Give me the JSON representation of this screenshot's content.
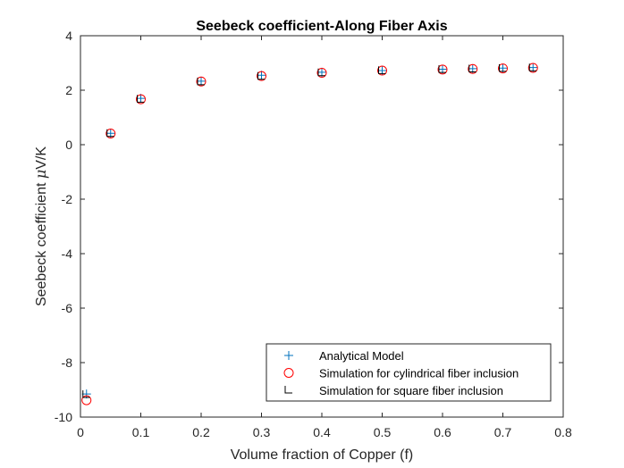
{
  "chart_data": {
    "type": "scatter",
    "title": "Seebeck coefficient-Along Fiber Axis",
    "xlabel": "Volume fraction of Copper (f)",
    "ylabel_prefix": "Seebeck coefficient ",
    "ylabel_mu": "μ",
    "ylabel_suffix": "V/K",
    "xlim": [
      0,
      0.8
    ],
    "ylim": [
      -10,
      4
    ],
    "xticks": [
      0,
      0.1,
      0.2,
      0.3,
      0.4,
      0.5,
      0.6,
      0.7,
      0.8
    ],
    "xtick_labels": [
      "0",
      "0.1",
      "0.2",
      "0.3",
      "0.4",
      "0.5",
      "0.6",
      "0.7",
      "0.8"
    ],
    "yticks": [
      -10,
      -8,
      -6,
      -4,
      -2,
      0,
      2,
      4
    ],
    "ytick_labels": [
      "-10",
      "-8",
      "-6",
      "-4",
      "-2",
      "0",
      "2",
      "4"
    ],
    "grid": false,
    "legend_position": "bottom-right",
    "series": [
      {
        "name": "Analytical Model",
        "marker": "plus",
        "color": "#0072BD",
        "x": [
          0.01,
          0.05,
          0.1,
          0.2,
          0.3,
          0.4,
          0.5,
          0.6,
          0.65,
          0.7,
          0.75
        ],
        "y": [
          -9.15,
          0.42,
          1.7,
          2.33,
          2.55,
          2.66,
          2.72,
          2.77,
          2.79,
          2.81,
          2.83
        ]
      },
      {
        "name": "Simulation for cylindrical fiber inclusion",
        "marker": "circle",
        "color": "#FF0000",
        "x": [
          0.01,
          0.05,
          0.1,
          0.2,
          0.3,
          0.4,
          0.5,
          0.6,
          0.65,
          0.7,
          0.75
        ],
        "y": [
          -9.38,
          0.41,
          1.67,
          2.32,
          2.52,
          2.64,
          2.72,
          2.76,
          2.78,
          2.8,
          2.82
        ]
      },
      {
        "name": "Simulation for square fiber inclusion",
        "marker": "corner",
        "color": "#000000",
        "x": [
          0.01,
          0.05,
          0.1,
          0.2,
          0.3,
          0.4,
          0.5,
          0.6,
          0.65,
          0.7,
          0.75
        ],
        "y": [
          -9.18,
          0.4,
          1.66,
          2.3,
          2.5,
          2.63,
          2.71,
          2.75,
          2.77,
          2.79,
          2.81
        ]
      }
    ]
  }
}
